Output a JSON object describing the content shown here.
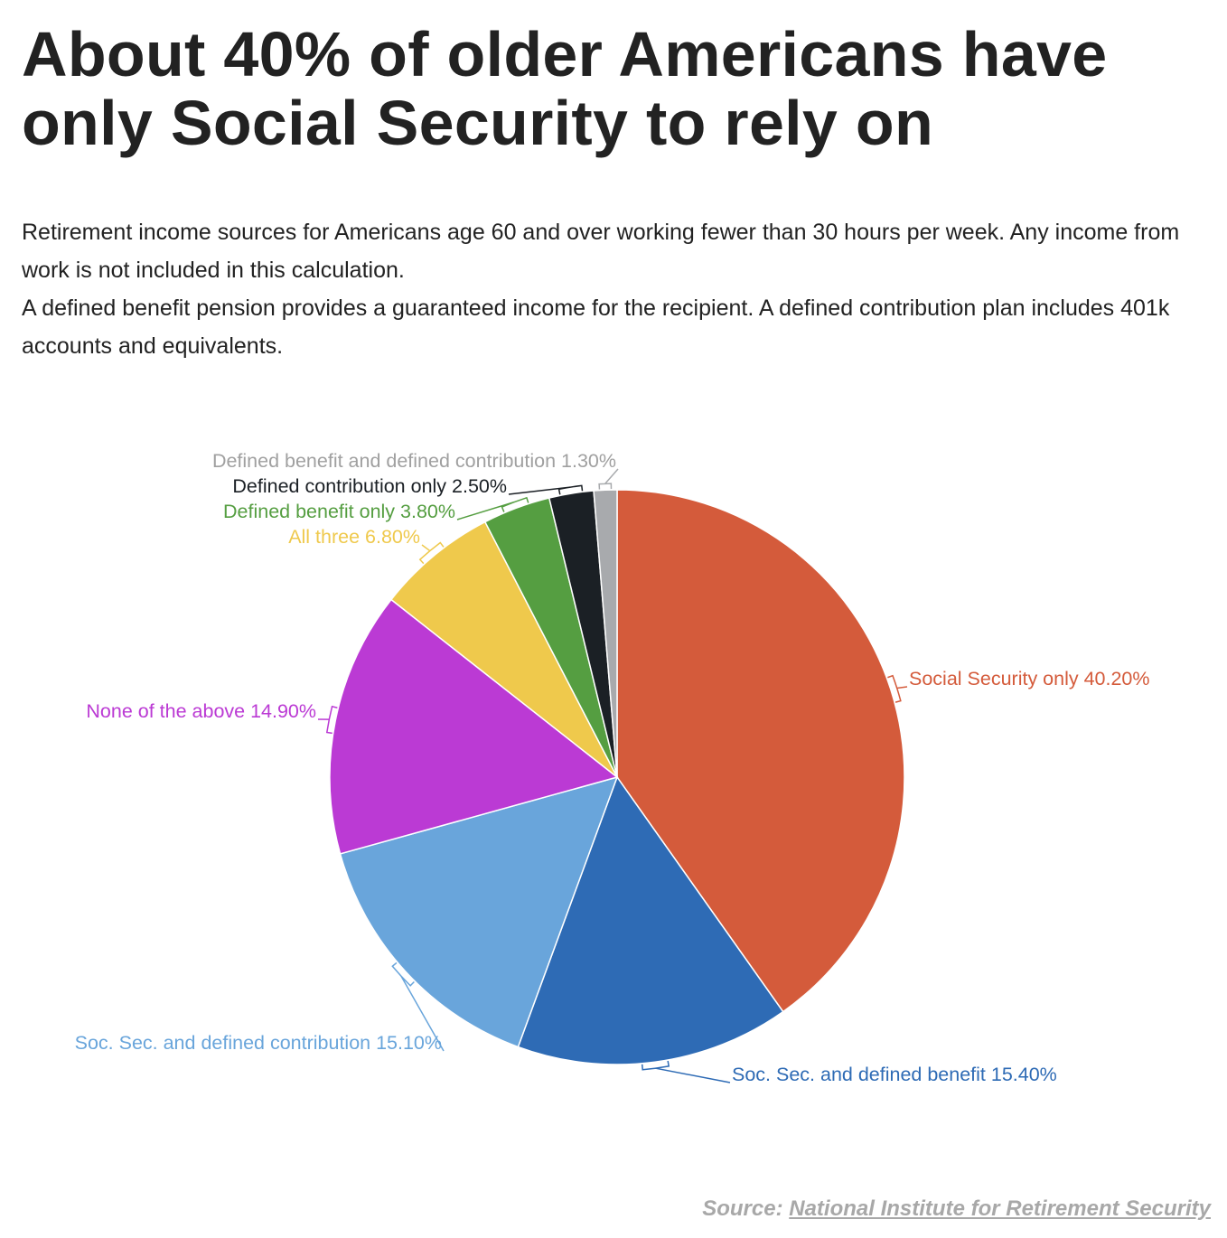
{
  "header": {
    "title": "About 40% of older Americans have only Social Security to rely on",
    "subtitle_line1": "Retirement income sources for Americans age 60 and over working fewer than 30 hours per week. Any income from work is not included in this calculation.",
    "subtitle_line2": "A defined benefit pension provides a guaranteed income for the recipient. A defined contribution plan includes 401k accounts and equivalents."
  },
  "footer": {
    "source_prefix": "Source: ",
    "source_link": "National Institute for Retirement Security"
  },
  "chart_data": {
    "type": "pie",
    "slices": [
      {
        "label": "Social Security only 40.20%",
        "value": 40.2,
        "color": "#d45b3b",
        "text_color": "#d45b3b"
      },
      {
        "label": "Soc. Sec. and defined benefit 15.40%",
        "value": 15.4,
        "color": "#2e6bb5",
        "text_color": "#2e6bb5"
      },
      {
        "label": "Soc. Sec. and defined contribution 15.10%",
        "value": 15.1,
        "color": "#69a5db",
        "text_color": "#69a5db"
      },
      {
        "label": "None of the above 14.90%",
        "value": 14.9,
        "color": "#bb3ad4",
        "text_color": "#bb3ad4"
      },
      {
        "label": "All three 6.80%",
        "value": 6.8,
        "color": "#efc94c",
        "text_color": "#efc94c"
      },
      {
        "label": "Defined benefit only 3.80%",
        "value": 3.8,
        "color": "#559e41",
        "text_color": "#559e41"
      },
      {
        "label": "Defined contribution only 2.50%",
        "value": 2.5,
        "color": "#1b2025",
        "text_color": "#1b2025"
      },
      {
        "label": "Defined benefit and defined contribution 1.30%",
        "value": 1.3,
        "color": "#a8aaad",
        "text_color": "#a0a0a0"
      }
    ]
  }
}
